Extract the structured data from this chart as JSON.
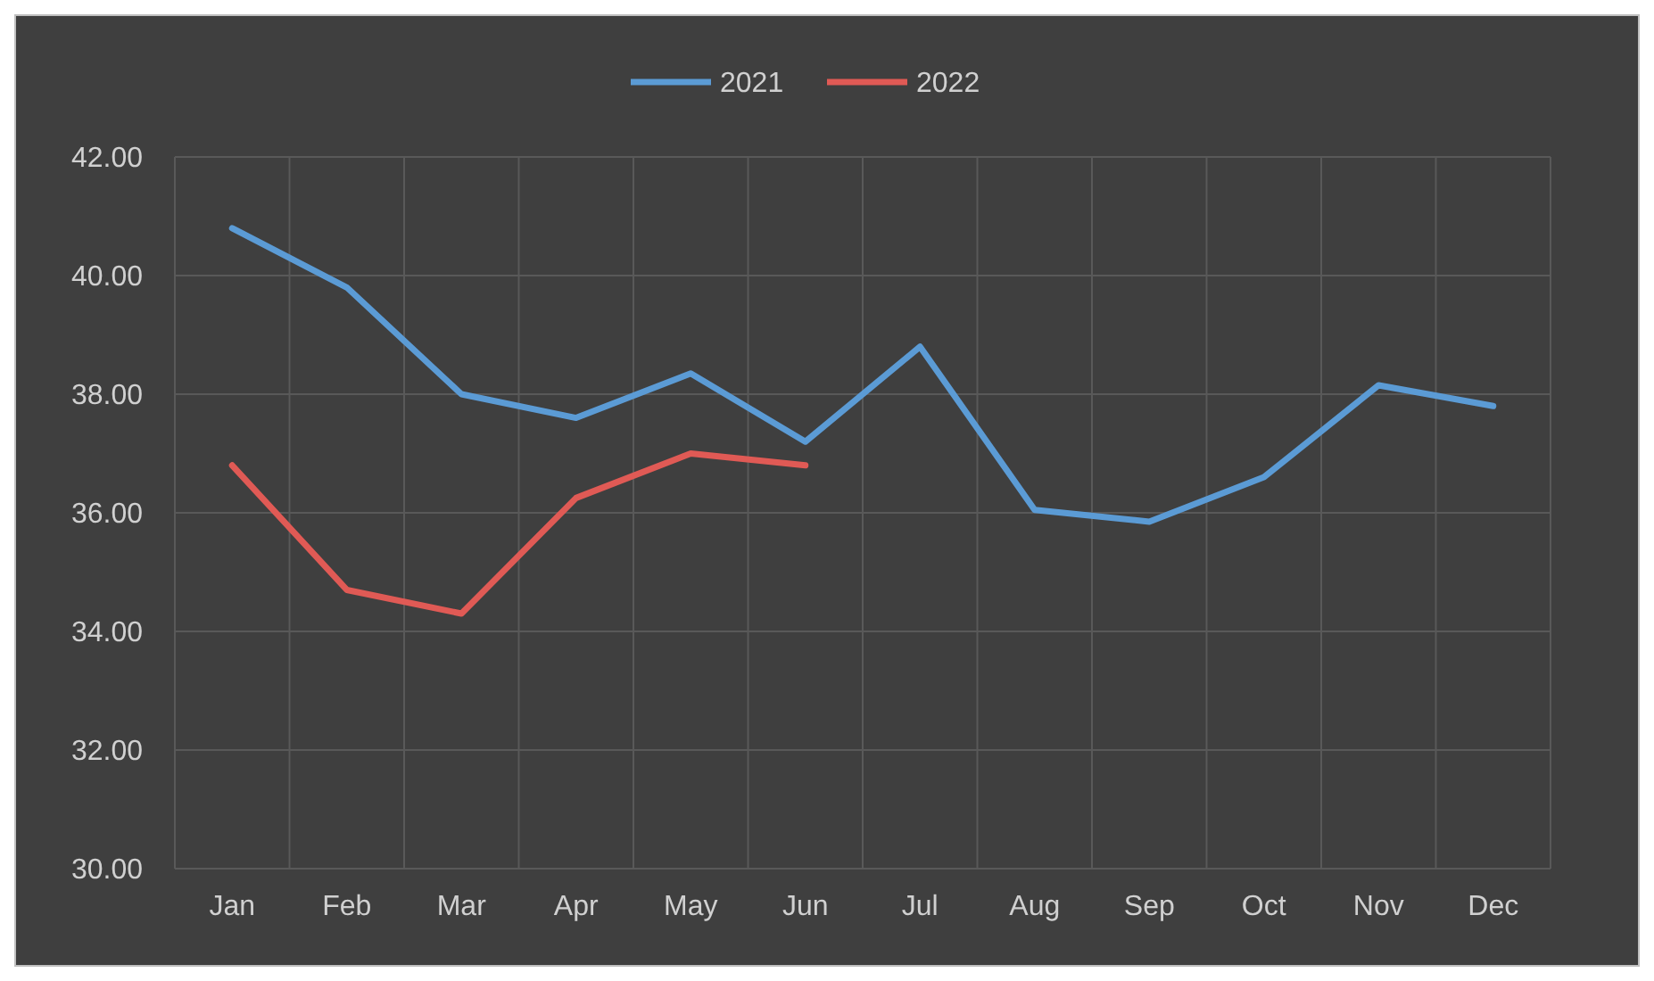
{
  "chart_data": {
    "type": "line",
    "categories": [
      "Jan",
      "Feb",
      "Mar",
      "Apr",
      "May",
      "Jun",
      "Jul",
      "Aug",
      "Sep",
      "Oct",
      "Nov",
      "Dec"
    ],
    "series": [
      {
        "name": "2021",
        "color": "#5b9bd5",
        "values": [
          40.8,
          39.8,
          38.0,
          37.6,
          38.35,
          37.2,
          38.8,
          36.05,
          35.85,
          36.6,
          38.15,
          37.8
        ]
      },
      {
        "name": "2022",
        "color": "#e05a55",
        "values": [
          36.8,
          34.7,
          34.3,
          36.25,
          37.0,
          36.8,
          null,
          null,
          null,
          null,
          null,
          null
        ]
      }
    ],
    "ylim": [
      30,
      42
    ],
    "yticks": [
      {
        "value": 30,
        "label": "30.00"
      },
      {
        "value": 32,
        "label": "32.00"
      },
      {
        "value": 34,
        "label": "34.00"
      },
      {
        "value": 36,
        "label": "36.00"
      },
      {
        "value": 38,
        "label": "38.00"
      },
      {
        "value": 40,
        "label": "40.00"
      },
      {
        "value": 42,
        "label": "42.00"
      }
    ],
    "grid": true,
    "legend": "top",
    "marker": "none",
    "line_style": "solid"
  }
}
